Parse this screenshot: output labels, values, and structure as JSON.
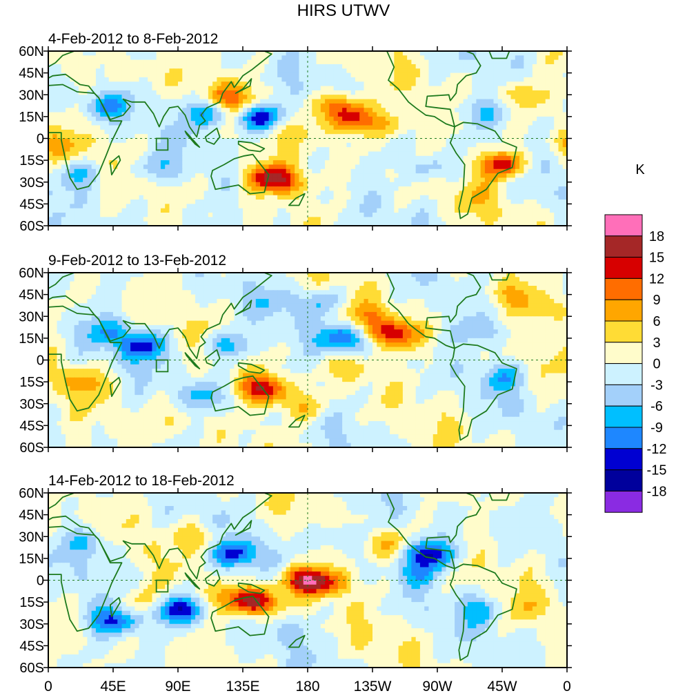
{
  "chart_data": {
    "type": "heatmap",
    "title": "HIRS UTWV",
    "panels": [
      {
        "subtitle": "4-Feb-2012 to 8-Feb-2012",
        "anomalies": [
          {
            "lon": 110,
            "lat": 18,
            "value": -9
          },
          {
            "lon": 148,
            "lat": 14,
            "value": -15
          },
          {
            "lon": 125,
            "lat": 28,
            "value": 9
          },
          {
            "lon": 202,
            "lat": 22,
            "value": 12
          },
          {
            "lon": 210,
            "lat": 12,
            "value": 12
          },
          {
            "lon": 235,
            "lat": 10,
            "value": 6
          },
          {
            "lon": 175,
            "lat": 5,
            "value": 3
          },
          {
            "lon": 150,
            "lat": -25,
            "value": 9
          },
          {
            "lon": 162,
            "lat": -30,
            "value": 12
          },
          {
            "lon": 315,
            "lat": -18,
            "value": 15
          },
          {
            "lon": 300,
            "lat": 18,
            "value": -6
          },
          {
            "lon": 330,
            "lat": 30,
            "value": 6
          },
          {
            "lon": 40,
            "lat": 22,
            "value": -9
          },
          {
            "lon": 25,
            "lat": -25,
            "value": -6
          },
          {
            "lon": 5,
            "lat": -5,
            "value": 6
          },
          {
            "lon": 75,
            "lat": -20,
            "value": -6
          },
          {
            "lon": 265,
            "lat": -20,
            "value": -6
          },
          {
            "lon": 300,
            "lat": -40,
            "value": 3
          },
          {
            "lon": 70,
            "lat": 45,
            "value": 3
          }
        ]
      },
      {
        "subtitle": "9-Feb-2012 to 13-Feb-2012",
        "anomalies": [
          {
            "lon": 240,
            "lat": 18,
            "value": 15
          },
          {
            "lon": 220,
            "lat": 30,
            "value": 6
          },
          {
            "lon": 205,
            "lat": 15,
            "value": -12
          },
          {
            "lon": 190,
            "lat": 40,
            "value": -6
          },
          {
            "lon": 150,
            "lat": -20,
            "value": 15
          },
          {
            "lon": 175,
            "lat": -32,
            "value": 6
          },
          {
            "lon": 210,
            "lat": -5,
            "value": 6
          },
          {
            "lon": 65,
            "lat": 10,
            "value": -12
          },
          {
            "lon": 40,
            "lat": 20,
            "value": -6
          },
          {
            "lon": 25,
            "lat": -15,
            "value": 6
          },
          {
            "lon": 315,
            "lat": -12,
            "value": -6
          },
          {
            "lon": 300,
            "lat": 20,
            "value": -6
          },
          {
            "lon": 125,
            "lat": 10,
            "value": -9
          },
          {
            "lon": 110,
            "lat": -25,
            "value": -6
          },
          {
            "lon": 345,
            "lat": 35,
            "value": 6
          },
          {
            "lon": 320,
            "lat": 45,
            "value": 6
          },
          {
            "lon": 90,
            "lat": -40,
            "value": 3
          },
          {
            "lon": 160,
            "lat": 40,
            "value": -3
          }
        ]
      },
      {
        "subtitle": "14-Feb-2012 to 18-Feb-2012",
        "anomalies": [
          {
            "lon": 178,
            "lat": 0,
            "value": 15
          },
          {
            "lon": 195,
            "lat": -2,
            "value": 9
          },
          {
            "lon": 145,
            "lat": -15,
            "value": 15
          },
          {
            "lon": 128,
            "lat": -12,
            "value": 6
          },
          {
            "lon": 265,
            "lat": 18,
            "value": -15
          },
          {
            "lon": 255,
            "lat": 5,
            "value": -6
          },
          {
            "lon": 130,
            "lat": 18,
            "value": -12
          },
          {
            "lon": 90,
            "lat": -20,
            "value": -15
          },
          {
            "lon": 45,
            "lat": -28,
            "value": -12
          },
          {
            "lon": 200,
            "lat": 30,
            "value": -6
          },
          {
            "lon": 65,
            "lat": -15,
            "value": 6
          },
          {
            "lon": 105,
            "lat": 30,
            "value": 6
          },
          {
            "lon": 300,
            "lat": -20,
            "value": -6
          },
          {
            "lon": 330,
            "lat": -20,
            "value": 3
          },
          {
            "lon": 30,
            "lat": 25,
            "value": -6
          },
          {
            "lon": 165,
            "lat": -35,
            "value": -3
          },
          {
            "lon": 235,
            "lat": 25,
            "value": 6
          },
          {
            "lon": 320,
            "lat": 45,
            "value": -3
          }
        ]
      }
    ],
    "x_ticks": [
      "0",
      "45E",
      "90E",
      "135E",
      "180",
      "135W",
      "90W",
      "45W",
      "0"
    ],
    "y_ticks": [
      "60N",
      "45N",
      "30N",
      "15N",
      "0",
      "15S",
      "30S",
      "45S",
      "60S"
    ],
    "xlim": [
      0,
      360
    ],
    "ylim": [
      -60,
      60
    ],
    "colorbar": {
      "unit": "K",
      "labels": [
        "18",
        "15",
        "12",
        "9",
        "6",
        "3",
        "0",
        "-3",
        "-6",
        "-9",
        "-12",
        "-15",
        "-18"
      ],
      "colors": [
        "#ff6fb9",
        "#a52727",
        "#d70000",
        "#ff6d00",
        "#ffa600",
        "#ffdc35",
        "#fffccb",
        "#cdf2ff",
        "#a3d0fa",
        "#00bfff",
        "#1e87ff",
        "#0000d2",
        "#00009c",
        "#8a2be2"
      ]
    },
    "colors": {
      "coast": "#1d7a1d",
      "gridline": "#1d7a1d"
    }
  }
}
